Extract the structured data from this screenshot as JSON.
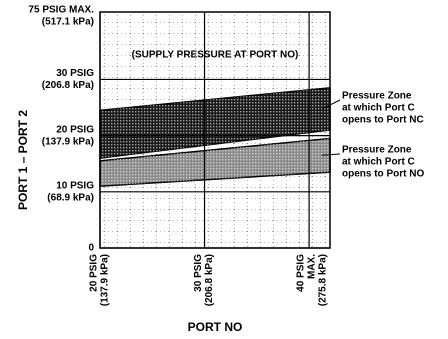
{
  "chart_data": {
    "type": "band",
    "x_label": "PORT NO",
    "y_label": "PORT 1 – PORT 2",
    "y_top_label": [
      "75 PSIG MAX.",
      "(517.1 kPa)"
    ],
    "annotation": "(SUPPLY PRESSURE AT PORT NO)",
    "x": [
      20,
      42
    ],
    "xlim": [
      20,
      42
    ],
    "ylim": [
      0,
      42
    ],
    "xticks": [
      {
        "value": 20,
        "label": [
          "20 PSIG",
          "(137.9 kPa)"
        ]
      },
      {
        "value": 30,
        "label": [
          "30 PSIG",
          "(206.8 kPa)"
        ]
      },
      {
        "value": 40,
        "label": [
          "40 PSIG",
          "MAX.",
          "(275.8 kPa)"
        ]
      }
    ],
    "yticks": [
      0,
      {
        "value": 10,
        "label": [
          "10 PSIG",
          "(68.9 kPa)"
        ]
      },
      {
        "value": 20,
        "label": [
          "20 PSIG",
          "(137.9 kPa)"
        ]
      },
      {
        "value": 30,
        "label": [
          "30 PSIG",
          "(206.8 kPa)"
        ]
      }
    ],
    "grid": true,
    "series": [
      {
        "name": [
          "Pressure Zone",
          "at which Port C",
          "opens to Port NC"
        ],
        "color": "#1a1a1a",
        "upper": [
          24.5,
          28.5
        ],
        "lower": [
          16,
          21
        ]
      },
      {
        "name": [
          "Pressure Zone",
          "at which Port C",
          "opens to Port NO"
        ],
        "color": "#8a8a8a",
        "upper": [
          15.5,
          19.5
        ],
        "lower": [
          11,
          13.5
        ]
      }
    ]
  }
}
